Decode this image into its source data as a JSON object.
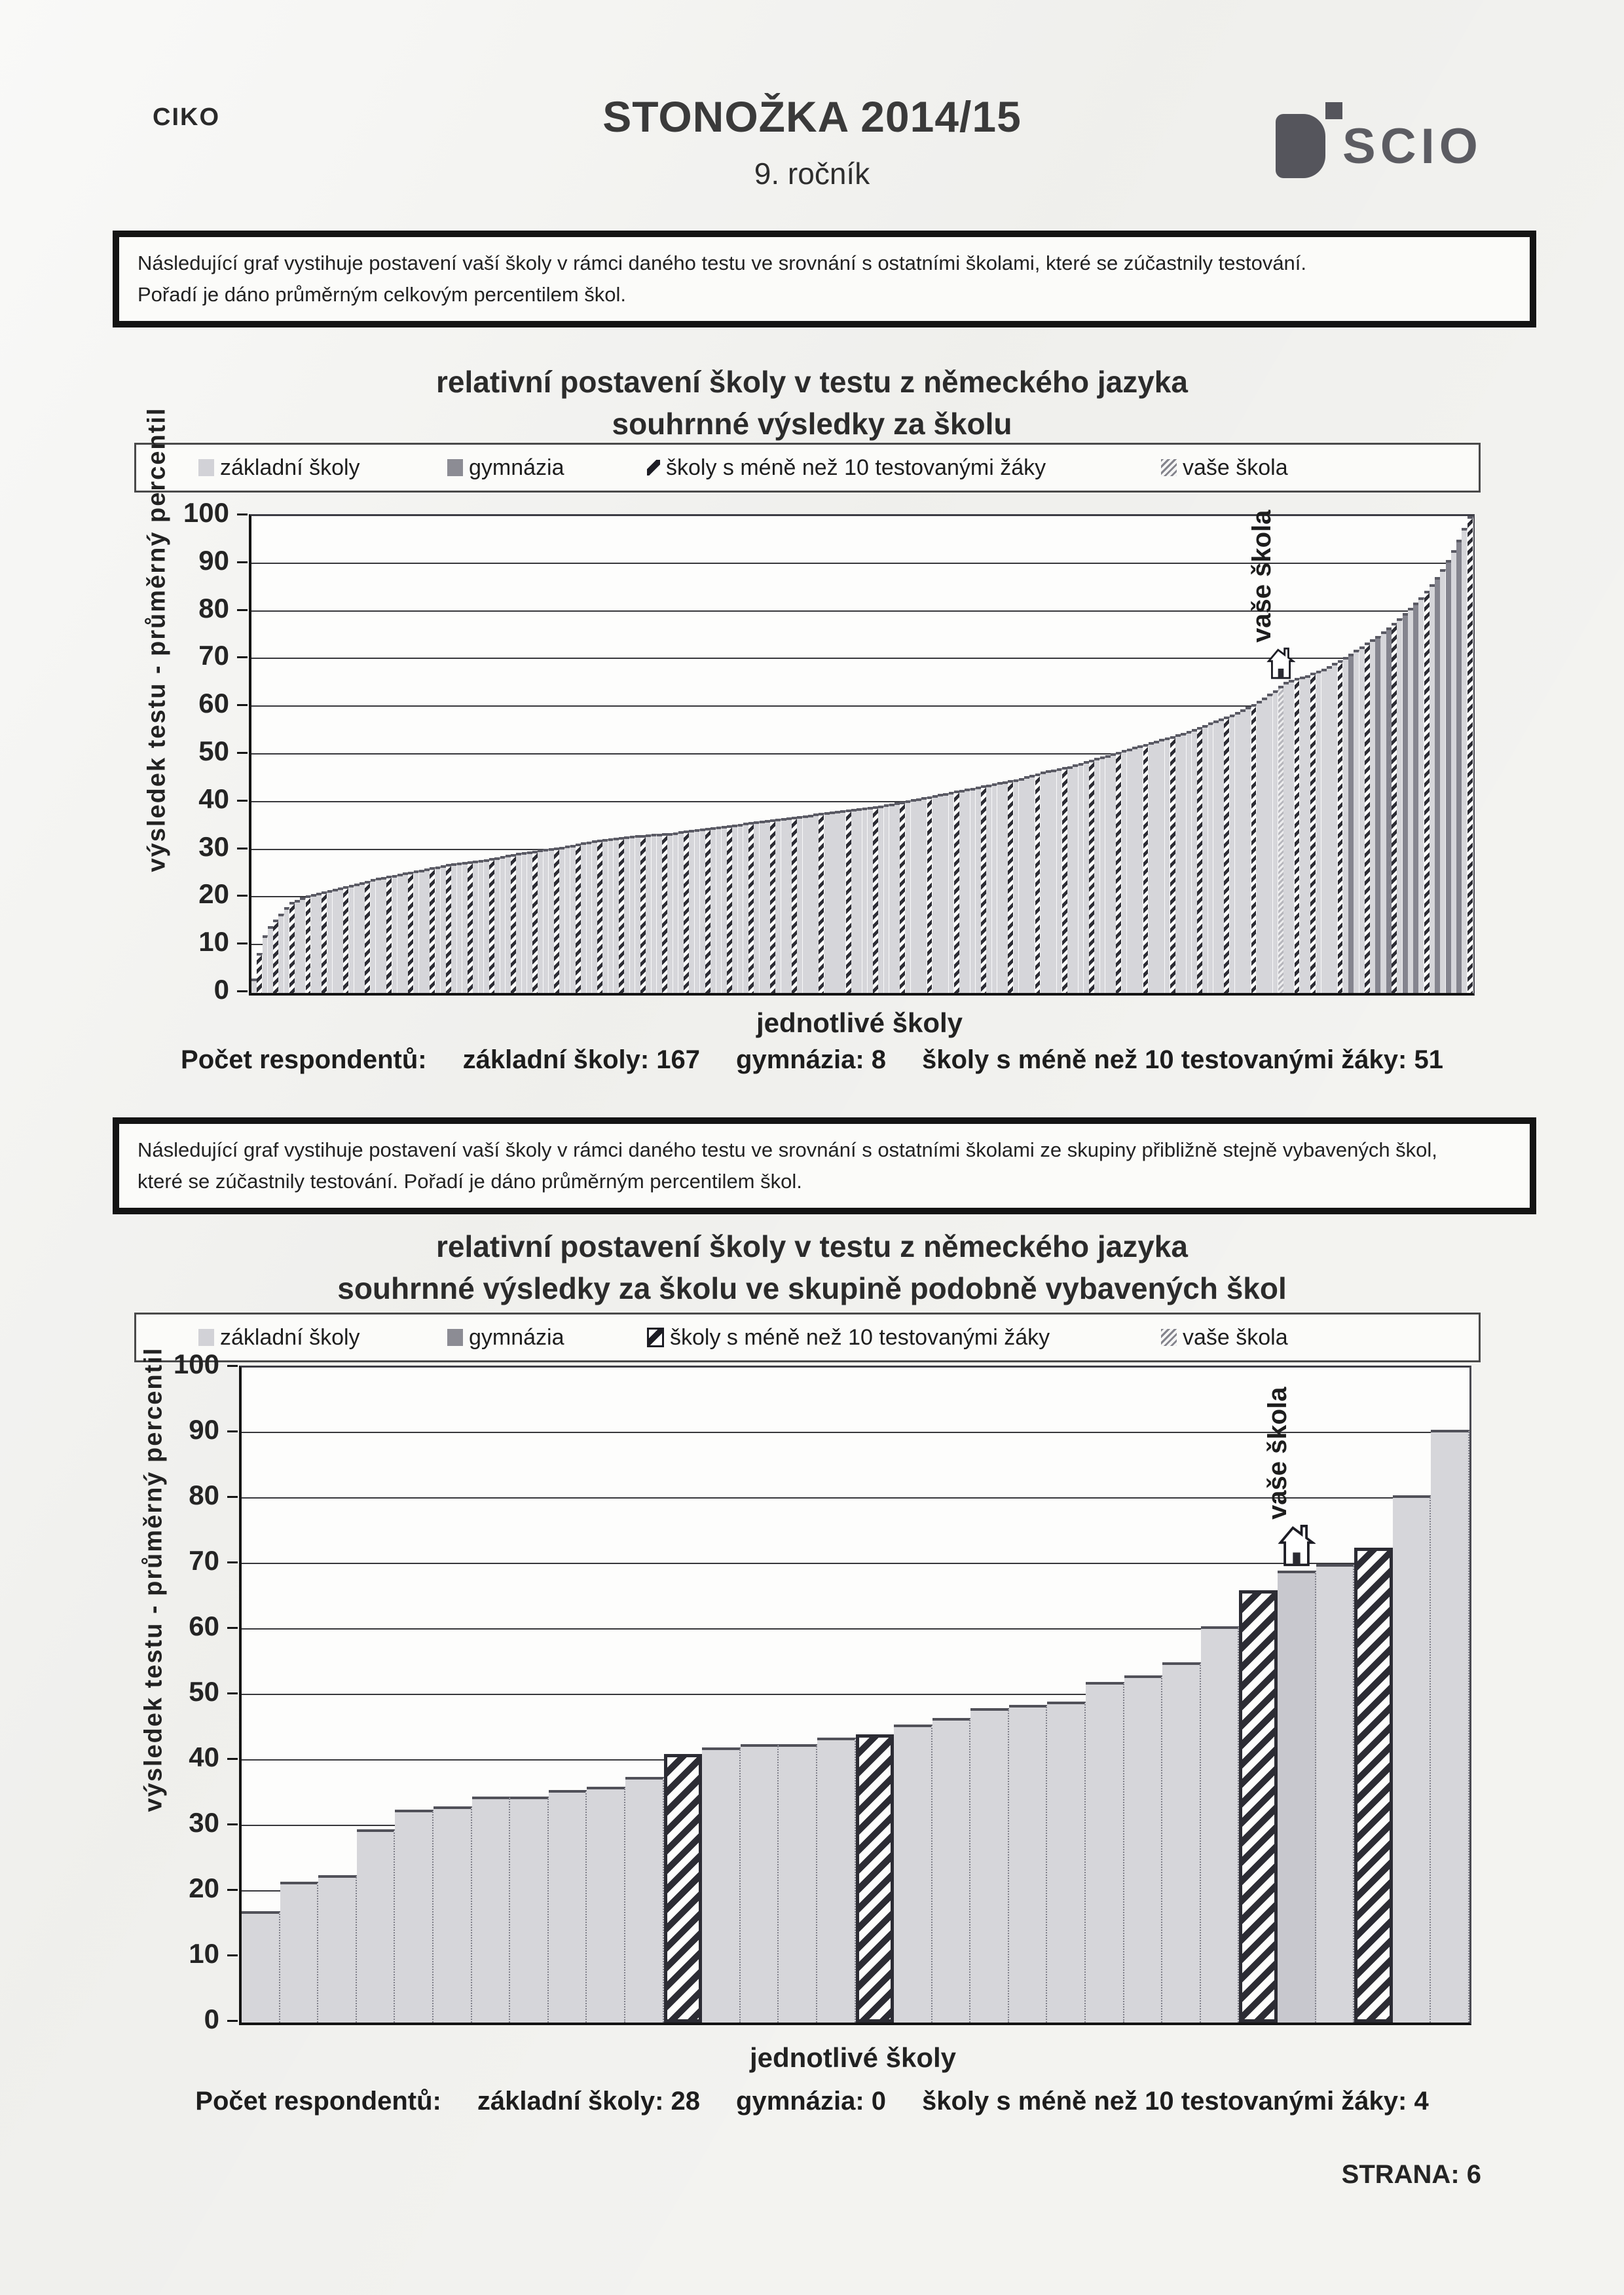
{
  "header": {
    "left_code": "CIKO",
    "title": "STONOŽKA 2014/15",
    "subtitle": "9. ročník",
    "logo_text": "SCIO"
  },
  "intro_box_1": {
    "line1": "Následující graf vystihuje postavení vaší školy v rámci daného testu ve srovnání s ostatními školami, které se zúčastnily testování.",
    "line2": "Pořadí je dáno průměrným celkovým percentilem škol."
  },
  "intro_box_2": {
    "line1": "Následující graf vystihuje postavení vaší školy v rámci daného testu ve srovnání s ostatními školami ze skupiny přibližně stejně vybavených škol,",
    "line2": "které se zúčastnily testování. Pořadí je dáno průměrným percentilem škol."
  },
  "legend": {
    "zakladni": "základní školy",
    "gymnazia": "gymnázia",
    "mene": "školy s méně než 10 testovanými žáky",
    "vase": "vaše škola"
  },
  "colors": {
    "zakladni_fill": "#d6d6da",
    "gymnazia_fill": "#85858f",
    "hatch_dark": "#2c2c34",
    "curve_edge": "#5a5a64",
    "page_bg": "#f3f3f0"
  },
  "footer": {
    "page_label": "STRANA: 6"
  },
  "chart_data": [
    {
      "type": "bar",
      "title_line1": "relativní postavení školy v testu z německého jazyka",
      "title_line2": "souhrnné výsledky za školu",
      "xlabel": "jednotlivé školy",
      "ylabel": "výsledek testu - průměrný percentil",
      "ylim": [
        0,
        100
      ],
      "yticks": [
        0,
        10,
        20,
        30,
        40,
        50,
        60,
        70,
        80,
        90,
        100
      ],
      "grid": true,
      "legend_position": "top",
      "n_schools": 226,
      "respondents": {
        "label": "Počet respondentů:",
        "zakladni": "základní školy: 167",
        "gymnazia": "gymnázia: 8",
        "mene": "školy s méně než 10 testovanými žáky: 51"
      },
      "profile_points": [
        [
          0,
          3
        ],
        [
          0.004,
          8
        ],
        [
          0.01,
          13
        ],
        [
          0.02,
          16
        ],
        [
          0.03,
          19
        ],
        [
          0.045,
          20.5
        ],
        [
          0.07,
          22
        ],
        [
          0.1,
          24
        ],
        [
          0.13,
          25.5
        ],
        [
          0.16,
          27
        ],
        [
          0.19,
          28
        ],
        [
          0.22,
          29.5
        ],
        [
          0.25,
          30.5
        ],
        [
          0.28,
          32
        ],
        [
          0.31,
          33
        ],
        [
          0.34,
          33.5
        ],
        [
          0.37,
          34.5
        ],
        [
          0.4,
          35.5
        ],
        [
          0.43,
          36.5
        ],
        [
          0.46,
          37.5
        ],
        [
          0.49,
          38.5
        ],
        [
          0.52,
          39.5
        ],
        [
          0.55,
          41
        ],
        [
          0.58,
          42.5
        ],
        [
          0.61,
          44
        ],
        [
          0.63,
          45
        ],
        [
          0.65,
          46.5
        ],
        [
          0.67,
          47.5
        ],
        [
          0.69,
          49
        ],
        [
          0.71,
          50.5
        ],
        [
          0.73,
          52
        ],
        [
          0.75,
          53.5
        ],
        [
          0.77,
          55
        ],
        [
          0.79,
          57
        ],
        [
          0.81,
          59
        ],
        [
          0.825,
          61
        ],
        [
          0.84,
          63.5
        ],
        [
          0.85,
          65.5
        ],
        [
          0.865,
          66.5
        ],
        [
          0.88,
          68
        ],
        [
          0.895,
          70
        ],
        [
          0.91,
          72.5
        ],
        [
          0.925,
          75
        ],
        [
          0.94,
          78
        ],
        [
          0.95,
          80.5
        ],
        [
          0.96,
          83
        ],
        [
          0.97,
          86
        ],
        [
          0.978,
          89
        ],
        [
          0.985,
          92
        ],
        [
          0.992,
          95.5
        ],
        [
          1,
          100
        ]
      ],
      "hatched_indices": [
        1,
        4,
        7,
        10,
        13,
        17,
        21,
        25,
        29,
        33,
        36,
        40,
        44,
        48,
        52,
        56,
        60,
        64,
        68,
        72,
        76,
        80,
        84,
        88,
        92,
        96,
        100,
        105,
        110,
        115,
        120,
        125,
        130,
        135,
        140,
        145,
        150,
        155,
        160,
        165,
        170,
        175,
        180,
        185,
        193,
        196,
        201,
        206,
        211,
        217,
        225
      ],
      "gymnazia_indices": [
        203,
        208,
        210,
        213,
        215,
        219,
        221,
        223
      ],
      "vase_skola": {
        "index": 190,
        "value": 65,
        "label": "vaše škola"
      }
    },
    {
      "type": "bar",
      "title_line1": "relativní postavení školy v testu z německého jazyka",
      "title_line2": "souhrnné výsledky za školu ve skupině podobně vybavených škol",
      "xlabel": "jednotlivé školy",
      "ylabel": "výsledek testu - průměrný percentil",
      "ylim": [
        0,
        100
      ],
      "yticks": [
        0,
        10,
        20,
        30,
        40,
        50,
        60,
        70,
        80,
        90,
        100
      ],
      "grid": true,
      "legend_position": "top",
      "respondents": {
        "label": "Počet respondentů:",
        "zakladni": "základní školy: 28",
        "gymnazia": "gymnázia: 0",
        "mene": "školy s méně než 10 testovanými žáky: 4"
      },
      "values": [
        17,
        21.5,
        22.5,
        29.5,
        32.5,
        33,
        34.5,
        34.5,
        35.5,
        36,
        37.5,
        41,
        42,
        42.5,
        42.5,
        43.5,
        44,
        45.5,
        46.5,
        48,
        48.5,
        49,
        52,
        53,
        55,
        60.5,
        66,
        69,
        70,
        72.5,
        80.5,
        90.5
      ],
      "hatched_indices": [
        11,
        16,
        26,
        29
      ],
      "vase_skola": {
        "index": 27,
        "value": 69,
        "label": "vaše škola"
      }
    }
  ]
}
